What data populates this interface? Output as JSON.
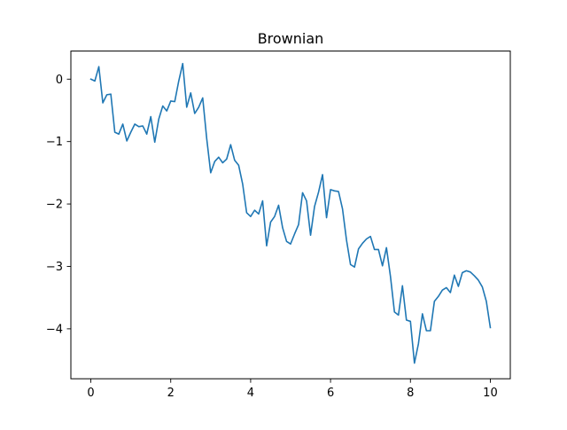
{
  "chart_data": {
    "type": "line",
    "title": "Brownian",
    "xlabel": "",
    "ylabel": "",
    "xlim": [
      -0.5,
      10.5
    ],
    "ylim": [
      -4.8,
      0.45
    ],
    "xticks": [
      0,
      2,
      4,
      6,
      8,
      10
    ],
    "yticks": [
      0,
      -1,
      -2,
      -3,
      -4
    ],
    "grid": false,
    "series": [
      {
        "color": "#1f77b4",
        "x": [
          0.0,
          0.1,
          0.2,
          0.3,
          0.4,
          0.5,
          0.6,
          0.7,
          0.8,
          0.9,
          1.0,
          1.1,
          1.2,
          1.3,
          1.4,
          1.5,
          1.6,
          1.7,
          1.8,
          1.9,
          2.0,
          2.1,
          2.2,
          2.3,
          2.4,
          2.5,
          2.6,
          2.7,
          2.8,
          2.9,
          3.0,
          3.1,
          3.2,
          3.3,
          3.4,
          3.5,
          3.6,
          3.7,
          3.8,
          3.9,
          4.0,
          4.1,
          4.2,
          4.3,
          4.4,
          4.5,
          4.6,
          4.7,
          4.8,
          4.9,
          5.0,
          5.1,
          5.2,
          5.3,
          5.4,
          5.5,
          5.6,
          5.7,
          5.8,
          5.9,
          6.0,
          6.1,
          6.2,
          6.3,
          6.4,
          6.5,
          6.6,
          6.7,
          6.8,
          6.9,
          7.0,
          7.1,
          7.2,
          7.3,
          7.4,
          7.5,
          7.6,
          7.7,
          7.8,
          7.9,
          8.0,
          8.1,
          8.2,
          8.3,
          8.4,
          8.5,
          8.6,
          8.7,
          8.8,
          8.9,
          9.0,
          9.1,
          9.2,
          9.3,
          9.4,
          9.5,
          9.6,
          9.7,
          9.8,
          9.9,
          10.0
        ],
        "y": [
          0.0,
          -0.03,
          0.2,
          -0.38,
          -0.25,
          -0.24,
          -0.85,
          -0.88,
          -0.72,
          -0.99,
          -0.85,
          -0.72,
          -0.76,
          -0.75,
          -0.88,
          -0.6,
          -1.01,
          -0.64,
          -0.43,
          -0.51,
          -0.35,
          -0.36,
          -0.03,
          0.25,
          -0.45,
          -0.22,
          -0.55,
          -0.45,
          -0.3,
          -0.95,
          -1.5,
          -1.32,
          -1.25,
          -1.34,
          -1.28,
          -1.05,
          -1.3,
          -1.38,
          -1.68,
          -2.14,
          -2.2,
          -2.1,
          -2.16,
          -1.95,
          -2.67,
          -2.29,
          -2.2,
          -2.02,
          -2.38,
          -2.6,
          -2.64,
          -2.48,
          -2.33,
          -1.82,
          -1.95,
          -2.5,
          -2.04,
          -1.81,
          -1.53,
          -2.22,
          -1.77,
          -1.79,
          -1.8,
          -2.08,
          -2.58,
          -2.97,
          -3.01,
          -2.72,
          -2.63,
          -2.56,
          -2.52,
          -2.73,
          -2.73,
          -2.99,
          -2.7,
          -3.16,
          -3.73,
          -3.78,
          -3.31,
          -3.86,
          -3.88,
          -4.55,
          -4.24,
          -3.76,
          -4.03,
          -4.03,
          -3.56,
          -3.48,
          -3.38,
          -3.34,
          -3.42,
          -3.14,
          -3.32,
          -3.1,
          -3.07,
          -3.09,
          -3.15,
          -3.22,
          -3.33,
          -3.56,
          -3.98
        ]
      }
    ]
  }
}
